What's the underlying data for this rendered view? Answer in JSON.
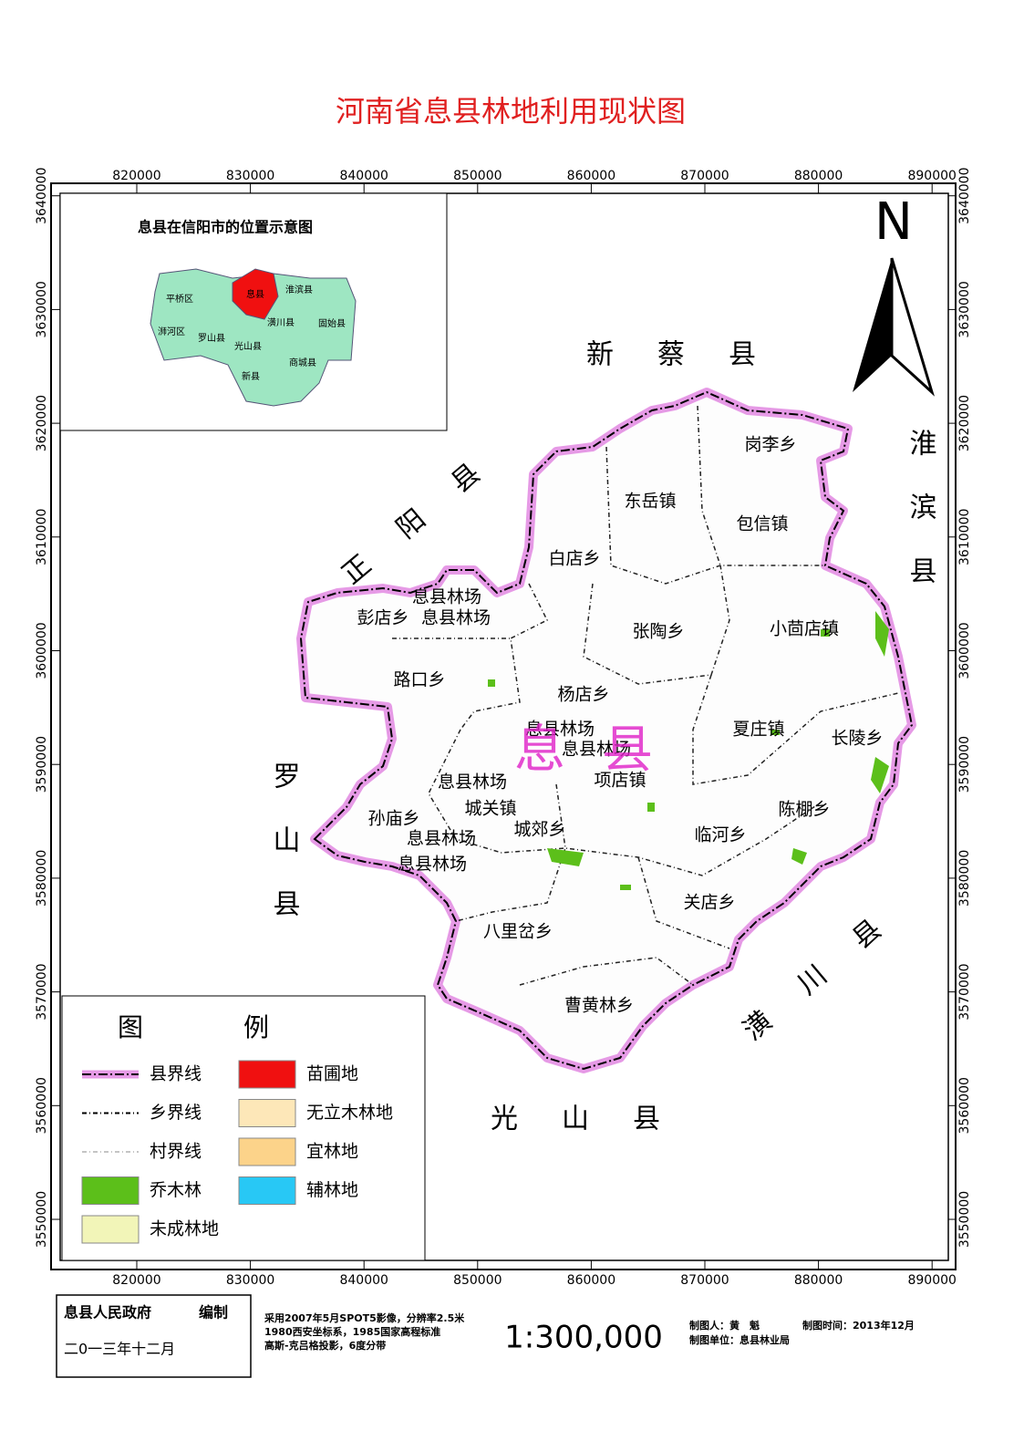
{
  "title": "河南省息县林地利用现状图",
  "map": {
    "x_ticks": [
      820000,
      830000,
      840000,
      850000,
      860000,
      870000,
      880000,
      890000
    ],
    "y_ticks": [
      3550000,
      3560000,
      3570000,
      3580000,
      3590000,
      3600000,
      3610000,
      3620000,
      3630000,
      3640000
    ],
    "north": "N",
    "county_label": "息县",
    "neighbors": [
      "新蔡县",
      "正阳县",
      "淮滨县",
      "罗山县",
      "光山县",
      "潢川县"
    ],
    "townships": [
      "岗李乡",
      "东岳镇",
      "包信镇",
      "白店乡",
      "息县林场",
      "彭店乡",
      "息县林场",
      "张陶乡",
      "小茴店镇",
      "路口乡",
      "杨店乡",
      "息县林场",
      "夏庄镇",
      "长陵乡",
      "息县林场",
      "项店镇",
      "息县林场",
      "城关镇",
      "孙庙乡",
      "城郊乡",
      "陈棚乡",
      "临河乡",
      "息县林场",
      "息县林场",
      "关店乡",
      "八里岔乡",
      "曹黄林乡"
    ]
  },
  "inset": {
    "title": "息县在信阳市的位置示意图",
    "labels": [
      "平桥区",
      "息县",
      "淮滨县",
      "浉河区",
      "潢川县",
      "固始县",
      "罗山县",
      "光山县",
      "商城县",
      "新县"
    ]
  },
  "legend": {
    "title": "图例",
    "items": [
      {
        "label": "县界线"
      },
      {
        "label": "乡界线"
      },
      {
        "label": "村界线"
      },
      {
        "label": "乔木林",
        "color": "#5cbf1a"
      },
      {
        "label": "未成林地",
        "color": "#f2f5b8"
      },
      {
        "label": "苗圃地",
        "color": "#f01010"
      },
      {
        "label": "无立木林地",
        "color": "#fde7b8"
      },
      {
        "label": "宜林地",
        "color": "#fcd38a"
      },
      {
        "label": "辅林地",
        "color": "#28c8f5"
      }
    ]
  },
  "footer": {
    "author_org": "息县人民政府",
    "author_action": "编制",
    "date": "二0一三年十二月",
    "notes": [
      "采用2007年5月SPOT5影像，分辨率2.5米",
      "1980西安坐标系，1985国家高程标准",
      "高斯-克吕格投影，6度分带"
    ],
    "scale": "1:300,000",
    "mapper": "制图人：黄　魁",
    "map_time": "制图时间：2013年12月",
    "map_unit": "制图单位：息县林业局"
  }
}
